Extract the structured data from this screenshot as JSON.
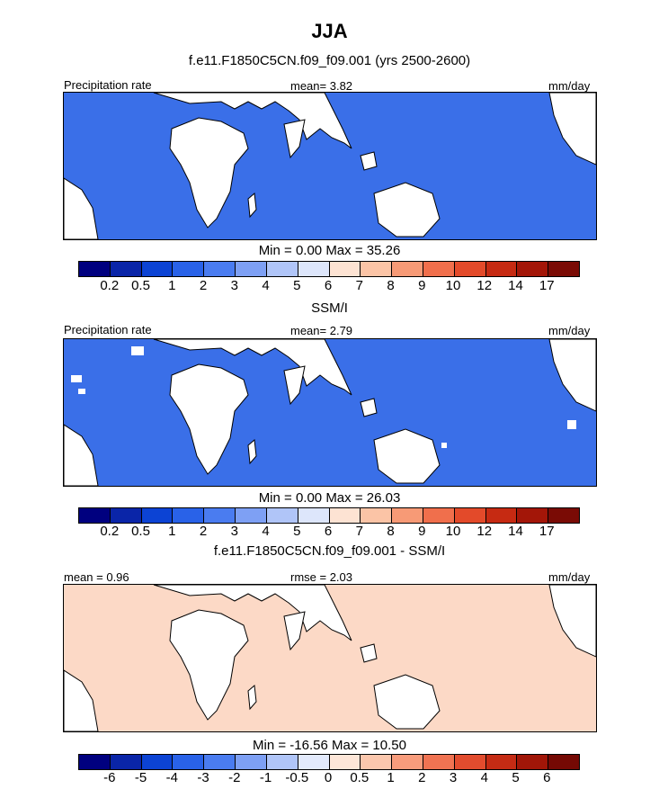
{
  "title": "JJA",
  "panels": [
    {
      "subtitle": "f.e11.F1850C5CN.f09_f09.001 (yrs 2500-2600)",
      "left_label": "Precipitation rate",
      "center_label": "mean=   3.82",
      "right_label": "mm/day",
      "minmax": "Min =   0.00 Max =  35.26",
      "colorbar_ticks": [
        "0.2",
        "0.5",
        "1",
        "2",
        "3",
        "4",
        "5",
        "6",
        "7",
        "8",
        "9",
        "10",
        "12",
        "14",
        "17"
      ]
    },
    {
      "subtitle": "SSM/I",
      "left_label": "Precipitation rate",
      "center_label": "mean=   2.79",
      "right_label": "mm/day",
      "minmax": "Min =   0.00 Max =  26.03",
      "colorbar_ticks": [
        "0.2",
        "0.5",
        "1",
        "2",
        "3",
        "4",
        "5",
        "6",
        "7",
        "8",
        "9",
        "10",
        "12",
        "14",
        "17"
      ]
    },
    {
      "subtitle": "f.e11.F1850C5CN.f09_f09.001 - SSM/I",
      "left_label": "mean =   0.96",
      "center_label": "rmse =   2.03",
      "right_label": "mm/day",
      "minmax": "Min = -16.56 Max =  10.50",
      "colorbar_ticks": [
        "-6",
        "-5",
        "-4",
        "-3",
        "-2",
        "-1",
        "-0.5",
        "0",
        "0.5",
        "1",
        "2",
        "3",
        "4",
        "5",
        "6"
      ]
    }
  ],
  "colors": {
    "precip_scale": [
      "#00007f",
      "#0a25a8",
      "#0c43d4",
      "#2962e8",
      "#4a7cf0",
      "#7ea0f4",
      "#b0c5f8",
      "#dde6fb",
      "#fde3d3",
      "#fbc4a6",
      "#f79a76",
      "#f06f4c",
      "#e34a2a",
      "#c62a12",
      "#a31608",
      "#7a0b05"
    ],
    "diff_scale": [
      "#00007f",
      "#0a25a8",
      "#0c43d4",
      "#2962e8",
      "#4a7cf0",
      "#7ea0f4",
      "#b0c5f8",
      "#e3eafc",
      "#fde6d8",
      "#fbc7ad",
      "#f89c7c",
      "#f07352",
      "#e24c2e",
      "#c52b14",
      "#a11608",
      "#750904"
    ]
  }
}
